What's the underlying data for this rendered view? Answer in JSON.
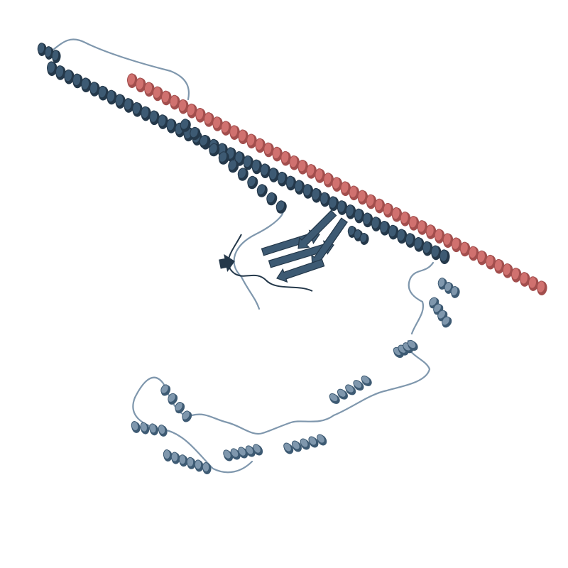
{
  "viewer": {
    "background": "#ffffff",
    "colors": {
      "chain_a": "#3d5a73",
      "chain_a_shade": "#24384a",
      "chain_a_light": "#6d8aa3",
      "chain_b": "#d0716f",
      "chain_b_shade": "#a24e4d",
      "disordered_region": "#7f97ad"
    },
    "structure_elements": [
      "chain-a-n-terminal-helix",
      "chain-a-long-coiled-coil-helix",
      "chain-b-coiled-coil-helix",
      "chain-a-beta-sandwich-domain",
      "chain-a-c-terminal-disordered-region"
    ]
  }
}
